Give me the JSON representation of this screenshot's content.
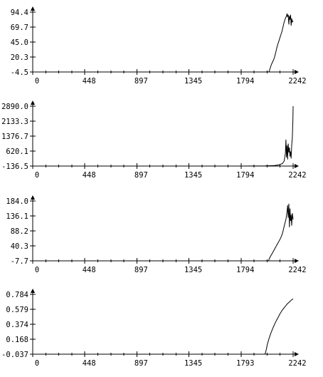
{
  "chart_data": [
    {
      "type": "line",
      "title": "",
      "xlabel": "",
      "ylabel": "",
      "xlim": [
        0,
        2242
      ],
      "ylim": [
        -4.5,
        94.4
      ],
      "x_ticks": [
        "0",
        "448",
        "897",
        "1345",
        "1794",
        "2242"
      ],
      "y_ticks": [
        "94.4",
        "69.7",
        "45.0",
        "20.3",
        "-4.5"
      ],
      "series": [
        {
          "x": [
            0,
            1500,
            2000,
            2035,
            2045,
            2055,
            2065,
            2075,
            2085,
            2095,
            2105,
            2115,
            2125,
            2135,
            2145,
            2155,
            2165,
            2175,
            2185,
            2190,
            2195,
            2200,
            2205,
            2210,
            2215,
            2220,
            2225,
            2230,
            2235,
            2242
          ],
          "y": [
            -4.5,
            -4.5,
            -4.5,
            -4.3,
            2,
            8,
            12,
            16,
            22,
            30,
            38,
            44,
            50,
            56,
            62,
            70,
            78,
            84,
            88,
            92,
            86,
            90,
            74,
            88,
            82,
            90,
            72,
            84,
            78,
            80
          ]
        }
      ]
    },
    {
      "type": "line",
      "title": "",
      "xlabel": "",
      "ylabel": "",
      "xlim": [
        0,
        2242
      ],
      "ylim": [
        -136.5,
        2890.0
      ],
      "x_ticks": [
        "0",
        "448",
        "897",
        "1345",
        "1794",
        "2242"
      ],
      "y_ticks": [
        "2890.0",
        "2133.3",
        "1376.7",
        "620.1",
        "-136.5"
      ],
      "series": [
        {
          "x": [
            0,
            1800,
            2000,
            2080,
            2120,
            2150,
            2165,
            2175,
            2180,
            2185,
            2190,
            2195,
            2200,
            2205,
            2210,
            2215,
            2220,
            2225,
            2230,
            2235,
            2240,
            2242
          ],
          "y": [
            -136.5,
            -136.5,
            -130,
            -110,
            -80,
            -10,
            120,
            500,
            1200,
            300,
            900,
            200,
            1000,
            550,
            800,
            350,
            600,
            250,
            900,
            1300,
            2200,
            2890
          ]
        }
      ]
    },
    {
      "type": "line",
      "title": "",
      "xlabel": "",
      "ylabel": "",
      "xlim": [
        0,
        2242
      ],
      "ylim": [
        -7.7,
        184.0
      ],
      "x_ticks": [
        "0",
        "448",
        "897",
        "1345",
        "1794",
        "2242"
      ],
      "y_ticks": [
        "184.0",
        "136.1",
        "88.2",
        "40.3",
        "-7.7"
      ],
      "series": [
        {
          "x": [
            0,
            1500,
            2000,
            2030,
            2045,
            2060,
            2075,
            2090,
            2105,
            2120,
            2135,
            2150,
            2160,
            2170,
            2180,
            2190,
            2195,
            2200,
            2205,
            2210,
            2215,
            2220,
            2225,
            2230,
            2235,
            2242
          ],
          "y": [
            -7.7,
            -7.7,
            -7.7,
            -7,
            5,
            15,
            25,
            35,
            45,
            55,
            65,
            80,
            95,
            110,
            125,
            150,
            170,
            130,
            175,
            100,
            160,
            120,
            140,
            105,
            145,
            125
          ]
        }
      ]
    },
    {
      "type": "line",
      "title": "",
      "xlabel": "",
      "ylabel": "",
      "xlim": [
        0,
        2242
      ],
      "ylim": [
        -0.037,
        0.784
      ],
      "x_ticks": [
        "0",
        "448",
        "897",
        "1345",
        "1793",
        "2242"
      ],
      "y_ticks": [
        "0.784",
        "0.579",
        "0.374",
        "0.168",
        "-0.037"
      ],
      "series": [
        {
          "x": [
            0,
            1500,
            2000,
            2010,
            2020,
            2035,
            2050,
            2070,
            2090,
            2110,
            2130,
            2150,
            2170,
            2190,
            2210,
            2230,
            2242
          ],
          "y": [
            -0.037,
            -0.037,
            -0.037,
            0.02,
            0.1,
            0.18,
            0.25,
            0.33,
            0.4,
            0.46,
            0.52,
            0.57,
            0.61,
            0.65,
            0.68,
            0.71,
            0.72
          ]
        }
      ]
    }
  ]
}
